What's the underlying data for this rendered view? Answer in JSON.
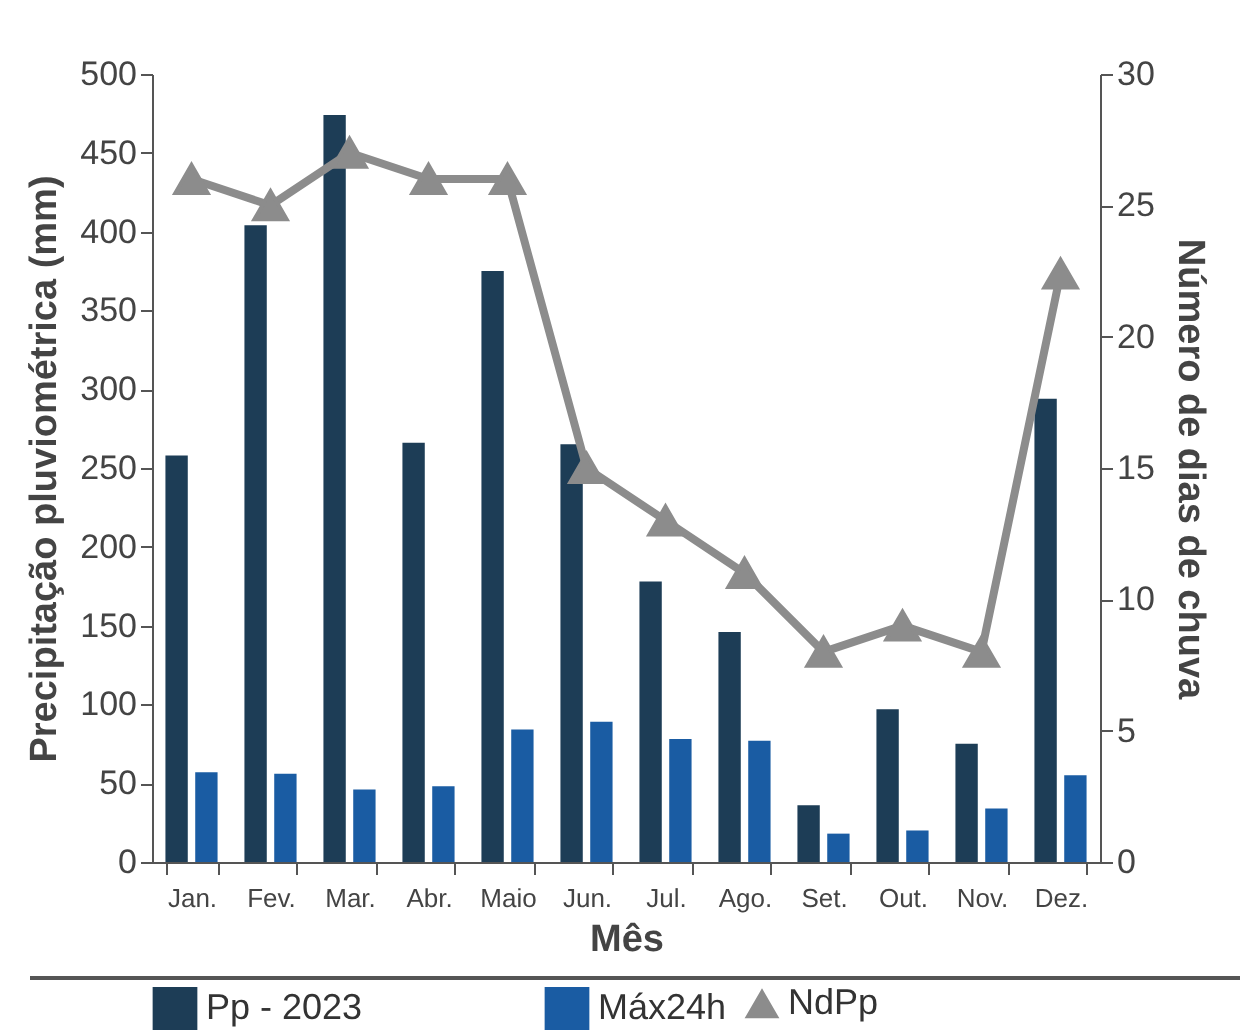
{
  "chart_data": {
    "type": "bar",
    "xlabel": "Mês",
    "ylabel": "Precipitação pluviométrica (mm)",
    "y2label": "Número de dias de chuva",
    "categories": [
      "Jan.",
      "Fev.",
      "Mar.",
      "Abr.",
      "Maio",
      "Jun.",
      "Jul.",
      "Ago.",
      "Set.",
      "Out.",
      "Nov.",
      "Dez."
    ],
    "series": [
      {
        "name": "Pp - 2023",
        "color": "#1d3d56",
        "values": [
          258,
          404,
          474,
          266,
          375,
          265,
          178,
          146,
          36,
          97,
          75,
          294
        ]
      },
      {
        "name": "Máx24h",
        "color": "#1a5ca3",
        "values": [
          57,
          56,
          46,
          48,
          84,
          89,
          78,
          77,
          18,
          20,
          34,
          55
        ]
      },
      {
        "name": "NdPp",
        "type": "line",
        "axis": "y2",
        "color": "#8c8c8c",
        "marker": "triangle",
        "line_style": "solid",
        "values": [
          26,
          25,
          27,
          26,
          26,
          15,
          13,
          11,
          8,
          9,
          8,
          22.4
        ]
      }
    ],
    "ylim": [
      0,
      500
    ],
    "yticks": [
      0,
      50,
      100,
      150,
      200,
      250,
      300,
      350,
      400,
      450,
      500
    ],
    "y2lim": [
      0,
      30
    ],
    "y2ticks": [
      0,
      5,
      10,
      15,
      20,
      25,
      30
    ],
    "legend": "bottom"
  }
}
